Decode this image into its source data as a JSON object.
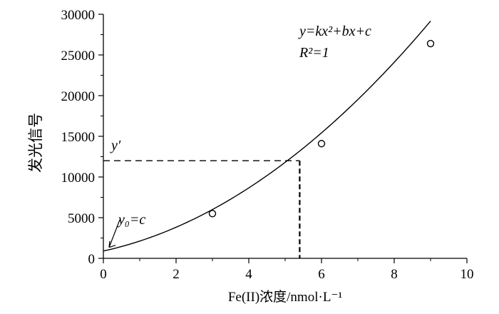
{
  "chart_data": {
    "type": "scatter",
    "xlabel": "Fe(II)浓度/nmol·L⁻¹",
    "ylabel": "发光信号",
    "xlim": [
      0,
      10
    ],
    "ylim": [
      0,
      30000
    ],
    "x_ticks": [
      "0",
      "2",
      "4",
      "6",
      "8",
      "10"
    ],
    "y_ticks": [
      "0",
      "5000",
      "10000",
      "15000",
      "20000",
      "25000",
      "30000"
    ],
    "grid": false,
    "legend": "none",
    "series": [
      {
        "values": [
          {
            "x": 3,
            "y": 5500
          },
          {
            "x": 6,
            "y": 14100
          },
          {
            "x": 9,
            "y": 26400
          }
        ]
      }
    ],
    "fit_curve": {
      "k": 240,
      "b": 980,
      "c": 900,
      "x_range": [
        0,
        9
      ]
    },
    "reference": {
      "x": 5.4,
      "y": 12000
    },
    "annotations": {
      "equation": "y=kx²+bx+c",
      "r_squared": "R²=1",
      "y_prime": "y′",
      "intercept": "y₀=c"
    },
    "colors": {
      "line": "#000000",
      "background": "#ffffff"
    }
  }
}
